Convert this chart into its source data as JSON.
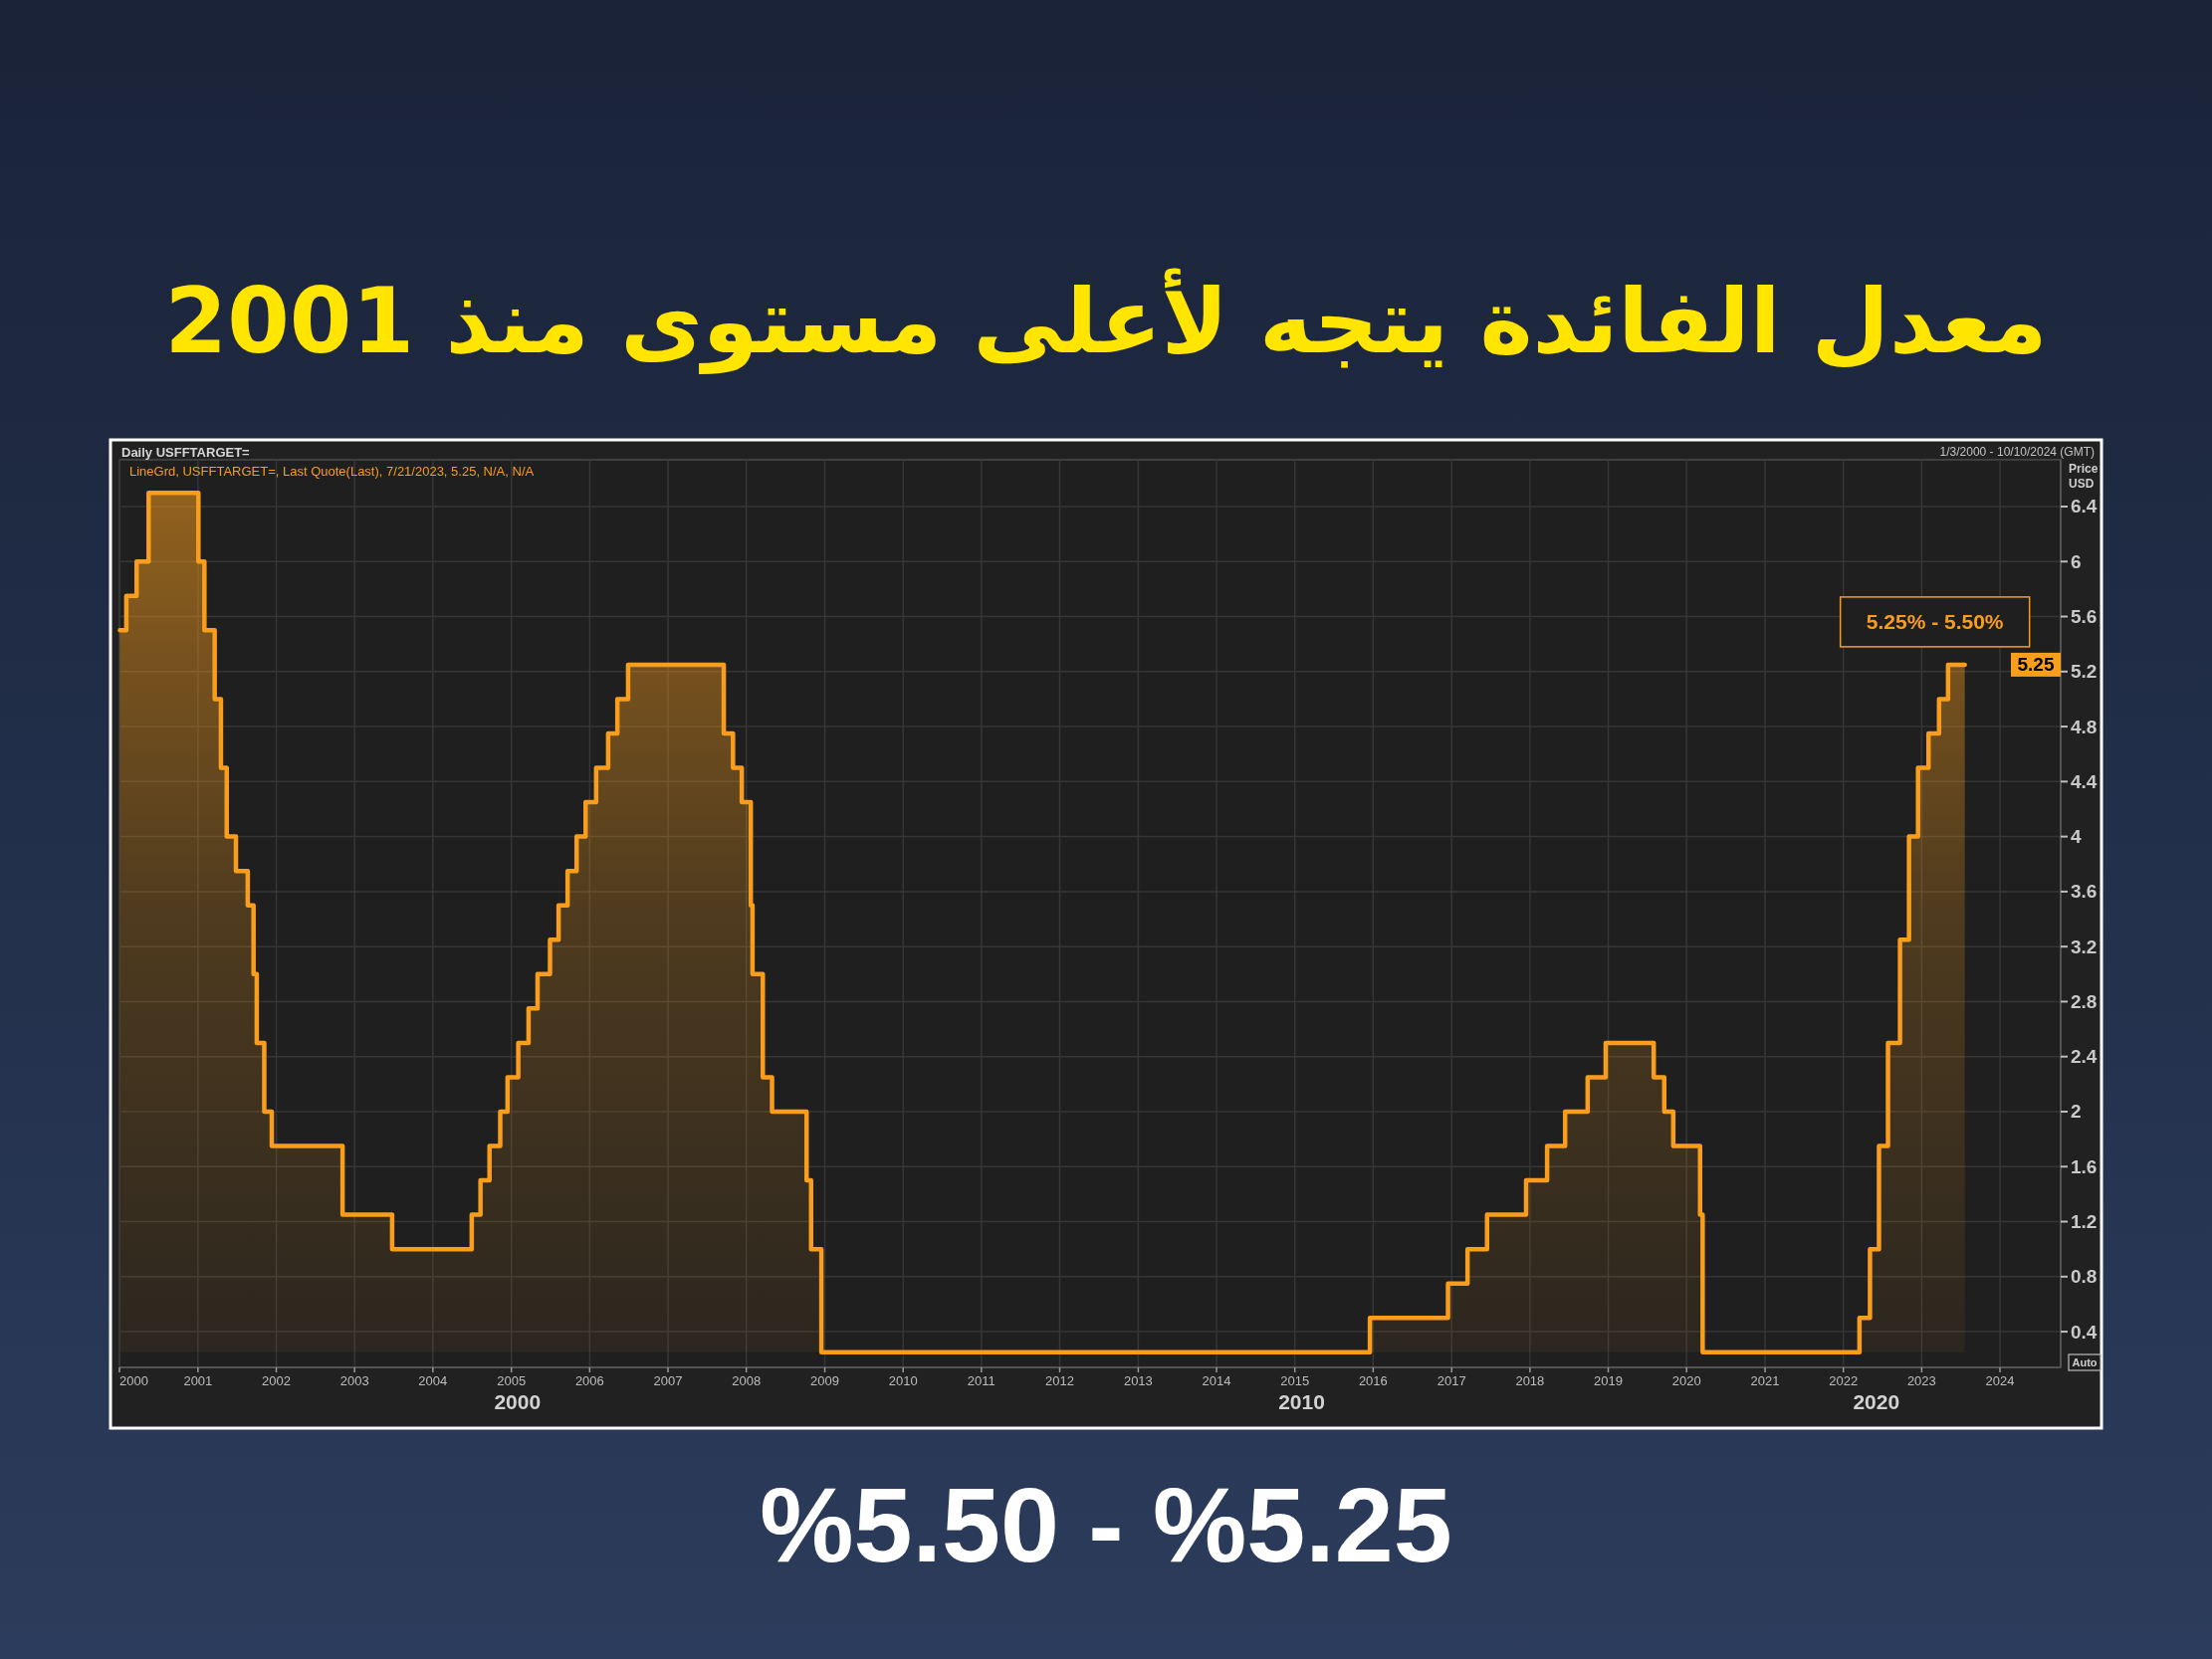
{
  "chart_data": {
    "type": "step",
    "title": "معدل الفائدة يتجه لأعلى مستوى منذ 2001",
    "ylabel": "Price USD",
    "legend": "top left",
    "grid": true,
    "xlim": [
      "2000-01-01",
      "2024-10-10"
    ],
    "xticks": [
      "2000",
      "2001",
      "2002",
      "2003",
      "2004",
      "2005",
      "2006",
      "2007",
      "2008",
      "2009",
      "2010",
      "2011",
      "2012",
      "2013",
      "2014",
      "2015",
      "2016",
      "2017",
      "2018",
      "2019",
      "2020",
      "2021",
      "2022",
      "2023",
      "2024"
    ],
    "ylim": [
      0.14,
      6.74
    ],
    "yticks": [
      0.4,
      0.8,
      1.2,
      1.6,
      2,
      2.4,
      2.8,
      3.2,
      3.6,
      4,
      4.4,
      4.8,
      5.2,
      5.6,
      6,
      6.4
    ],
    "series": [
      {
        "name": "LineGrd, USFFTARGET=, Last Quote(Last), 7/21/2023, 5.25, N/A, N/A",
        "color": "#f99d1c",
        "x": [
          "2000-01-03",
          "2000-02-02",
          "2000-03-21",
          "2000-05-16",
          "2001-01-03",
          "2001-01-31",
          "2001-03-20",
          "2001-04-18",
          "2001-05-15",
          "2001-06-27",
          "2001-08-21",
          "2001-09-17",
          "2001-10-02",
          "2001-11-06",
          "2001-12-11",
          "2002-11-06",
          "2003-06-25",
          "2004-06-30",
          "2004-08-10",
          "2004-09-21",
          "2004-11-10",
          "2004-12-14",
          "2005-02-02",
          "2005-03-22",
          "2005-05-03",
          "2005-06-30",
          "2005-08-09",
          "2005-09-20",
          "2005-11-01",
          "2005-12-13",
          "2006-01-31",
          "2006-03-28",
          "2006-05-10",
          "2006-06-29",
          "2007-09-18",
          "2007-10-31",
          "2007-12-11",
          "2008-01-22",
          "2008-01-30",
          "2008-03-18",
          "2008-04-30",
          "2008-10-08",
          "2008-10-29",
          "2008-12-16",
          "2015-12-17",
          "2016-12-15",
          "2017-03-16",
          "2017-06-15",
          "2017-12-14",
          "2018-03-22",
          "2018-06-14",
          "2018-09-27",
          "2018-12-20",
          "2019-08-01",
          "2019-09-19",
          "2019-10-31",
          "2020-03-04",
          "2020-03-16",
          "2022-03-17",
          "2022-05-05",
          "2022-06-16",
          "2022-07-28",
          "2022-09-22",
          "2022-11-03",
          "2022-12-15",
          "2023-02-02",
          "2023-03-23",
          "2023-05-04",
          "2023-07-21"
        ],
        "values": [
          5.5,
          5.75,
          6,
          6.5,
          6,
          5.5,
          5,
          4.5,
          4,
          3.75,
          3.5,
          3,
          2.5,
          2,
          1.75,
          1.25,
          1,
          1.25,
          1.5,
          1.75,
          2,
          2.25,
          2.5,
          2.75,
          3,
          3.25,
          3.5,
          3.75,
          4,
          4.25,
          4.5,
          4.75,
          5,
          5.25,
          4.75,
          4.5,
          4.25,
          3.5,
          3,
          2.25,
          2,
          1.5,
          1,
          0.25,
          0.5,
          0.75,
          1,
          1.25,
          1.5,
          1.75,
          2,
          2.25,
          2.5,
          2.25,
          2,
          1.75,
          1.25,
          0.25,
          0.5,
          1,
          1.75,
          2.5,
          3.25,
          4,
          4.5,
          4.75,
          5,
          5.25,
          5.25
        ]
      }
    ],
    "annotations": [
      "Daily USFFTARGET=",
      "1/3/2000 - 10/10/2024 (GMT)",
      {
        "text": "5.25% - 5.50%",
        "x": "2023-07-21",
        "y": 5.25
      },
      "5.25",
      "2000",
      "2010",
      "2020",
      "Auto",
      "%5.50 - %5.25"
    ]
  }
}
